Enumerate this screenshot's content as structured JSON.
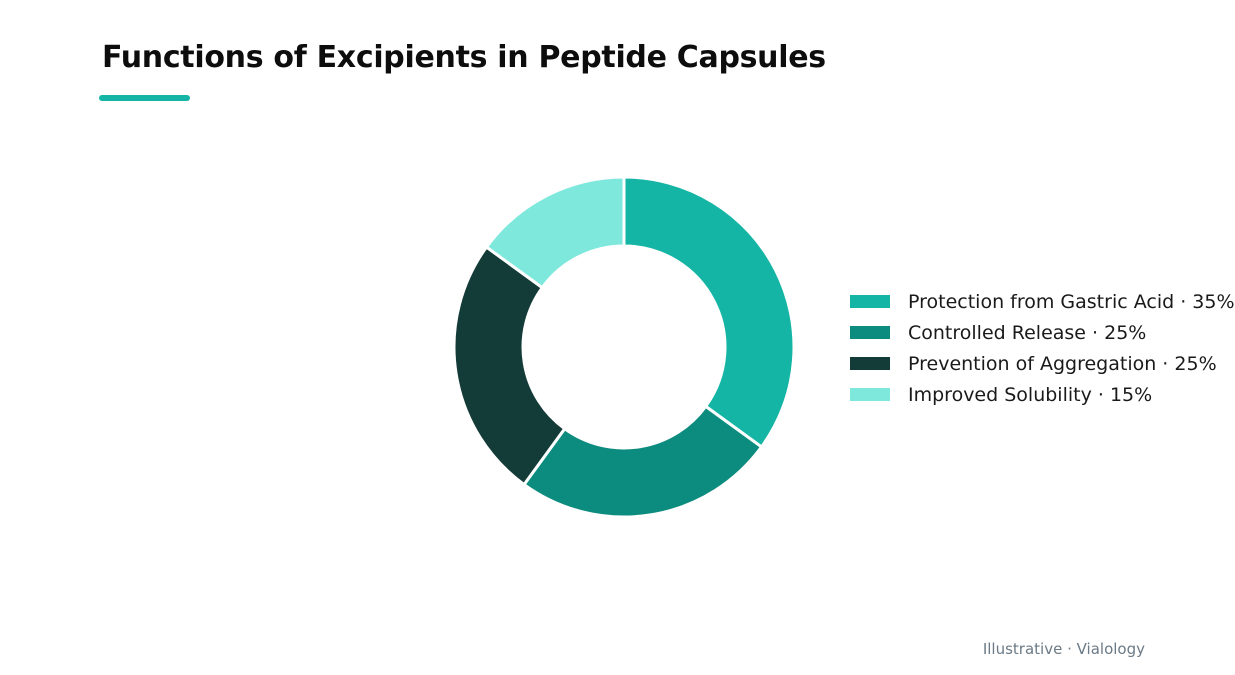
{
  "chart_data": {
    "type": "pie",
    "title": "Functions of Excipients in Peptide Capsules",
    "categories": [
      "Protection from Gastric Acid",
      "Controlled Release",
      "Prevention of Aggregation",
      "Improved Solubility"
    ],
    "values": [
      35,
      25,
      25,
      15
    ],
    "colors": [
      "#14b5a5",
      "#0c8c7e",
      "#133b38",
      "#7fe8dd"
    ],
    "legend_labels": [
      "Protection from Gastric Acid · 35%",
      "Controlled Release · 25%",
      "Prevention of Aggregation · 25%",
      "Improved Solubility · 15%"
    ],
    "legend_position": "right",
    "accent_color": "#14b5a5"
  },
  "footer": {
    "credit": "Illustrative · Vialology"
  }
}
